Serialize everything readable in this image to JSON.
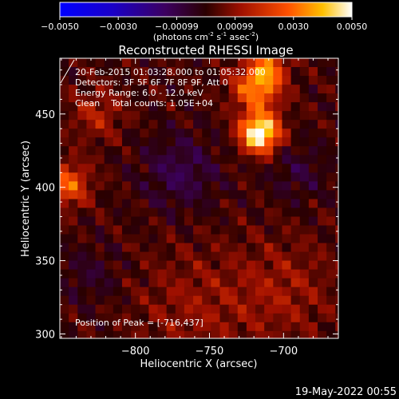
{
  "chart_data": {
    "type": "heatmap",
    "title": "Reconstructed RHESSI Image",
    "xlabel": "Heliocentric X (arcsec)",
    "ylabel": "Heliocentric Y (arcsec)",
    "xlim": [
      -851,
      -663
    ],
    "ylim": [
      297,
      488
    ],
    "xticks": [
      -800,
      -750,
      -700
    ],
    "yticks": [
      300,
      350,
      400,
      450
    ],
    "colorbar": {
      "ticks": [
        "-0.0050",
        "-0.0030",
        "-0.00099",
        "0.00099",
        "0.0030",
        "0.0050"
      ],
      "range": [
        -0.005,
        0.005
      ],
      "units_label": "(photons cm",
      "units_sup1": "-2",
      "units_mid": " s",
      "units_sup2": "-1",
      "units_end": " asec",
      "units_sup3": "-2",
      "units_close": ")"
    },
    "annotations": [
      "20-Feb-2015 01:03:28.000 to 01:05:32.000",
      "Detectors: 3F 5F 6F 7F 8F 9F, Att 0",
      "Energy Range: 6.0 - 12.0 keV",
      "Clean    Total counts: 1.05E+04"
    ],
    "peak_label": "Position of Peak = [-716,437]",
    "peak": {
      "x": -716,
      "y": 437,
      "value": 0.005
    },
    "sources": [
      {
        "x": -716,
        "y": 437,
        "sigma": 9,
        "amp": 0.0054
      },
      {
        "x": -718,
        "y": 468,
        "sigma": 11,
        "amp": 0.0032
      },
      {
        "x": -710,
        "y": 482,
        "sigma": 8,
        "amp": 0.0022
      },
      {
        "x": -846,
        "y": 402,
        "sigma": 10,
        "amp": 0.0026
      },
      {
        "x": -826,
        "y": 450,
        "sigma": 12,
        "amp": 0.0012
      },
      {
        "x": -760,
        "y": 318,
        "sigma": 28,
        "amp": 0.0008
      },
      {
        "x": -700,
        "y": 330,
        "sigma": 24,
        "amp": 0.0009
      },
      {
        "x": -770,
        "y": 410,
        "sigma": 18,
        "amp": -0.0012
      },
      {
        "x": -690,
        "y": 410,
        "sigma": 14,
        "amp": -0.0008
      },
      {
        "x": -830,
        "y": 340,
        "sigma": 14,
        "amp": -0.0007
      }
    ]
  },
  "footer": {
    "date": "19-May-2022 00:55"
  }
}
